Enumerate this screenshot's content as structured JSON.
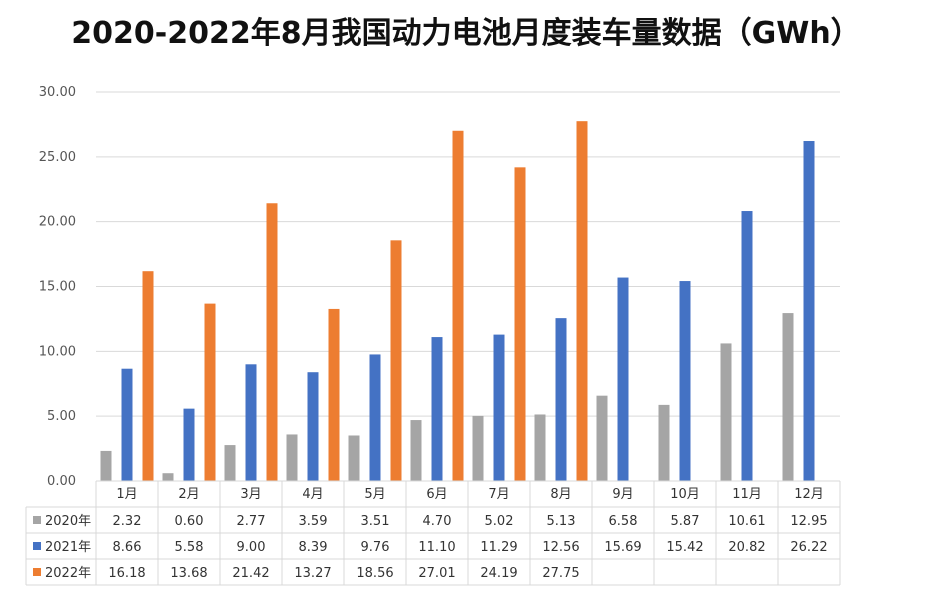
{
  "chart_data": {
    "type": "bar",
    "title": "2020-2022年8月我国动力电池月度装车量数据（GWh）",
    "categories": [
      "1月",
      "2月",
      "3月",
      "4月",
      "5月",
      "6月",
      "7月",
      "8月",
      "9月",
      "10月",
      "11月",
      "12月"
    ],
    "ylim": [
      0,
      30
    ],
    "yticks": [
      "0.00",
      "5.00",
      "10.00",
      "15.00",
      "20.00",
      "25.00",
      "30.00"
    ],
    "ytick_values": [
      0,
      5,
      10,
      15,
      20,
      25,
      30
    ],
    "grid": true,
    "legend": "data-table-left",
    "series": [
      {
        "name": "2020年",
        "color": "#a5a5a5",
        "values": [
          2.32,
          0.6,
          2.77,
          3.59,
          3.51,
          4.7,
          5.02,
          5.13,
          6.58,
          5.87,
          10.61,
          12.95
        ],
        "labels": [
          "2.32",
          "0.60",
          "2.77",
          "3.59",
          "3.51",
          "4.70",
          "5.02",
          "5.13",
          "6.58",
          "5.87",
          "10.61",
          "12.95"
        ]
      },
      {
        "name": "2021年",
        "color": "#4472c4",
        "values": [
          8.66,
          5.58,
          9.0,
          8.39,
          9.76,
          11.1,
          11.29,
          12.56,
          15.69,
          15.42,
          20.82,
          26.22
        ],
        "labels": [
          "8.66",
          "5.58",
          "9.00",
          "8.39",
          "9.76",
          "11.10",
          "11.29",
          "12.56",
          "15.69",
          "15.42",
          "20.82",
          "26.22"
        ]
      },
      {
        "name": "2022年",
        "color": "#ed7d31",
        "values": [
          16.18,
          13.68,
          21.42,
          13.27,
          18.56,
          27.01,
          24.19,
          27.75,
          null,
          null,
          null,
          null
        ],
        "labels": [
          "16.18",
          "13.68",
          "21.42",
          "13.27",
          "18.56",
          "27.01",
          "24.19",
          "27.75",
          "",
          "",
          "",
          ""
        ]
      }
    ]
  }
}
